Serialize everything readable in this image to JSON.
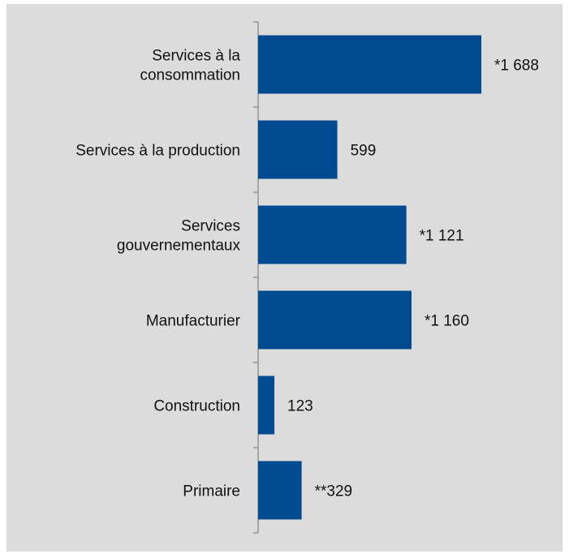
{
  "chart_data": {
    "type": "bar",
    "orientation": "horizontal",
    "categories": [
      [
        "Services à la",
        "consommation"
      ],
      [
        "Services à la production"
      ],
      [
        "Services",
        "gouvernementaux"
      ],
      [
        "Manufacturier"
      ],
      [
        "Construction"
      ],
      [
        "Primaire"
      ]
    ],
    "values": [
      1688,
      599,
      1121,
      1160,
      123,
      329
    ],
    "data_labels": [
      "*1 688",
      "599",
      "*1 121",
      "*1 160",
      "123",
      "**329"
    ],
    "grid": false,
    "legend": "none",
    "colors": {
      "background": "#dcdcdc",
      "bar": "#004a8f",
      "axis": "#888888",
      "text": "#111111"
    }
  }
}
